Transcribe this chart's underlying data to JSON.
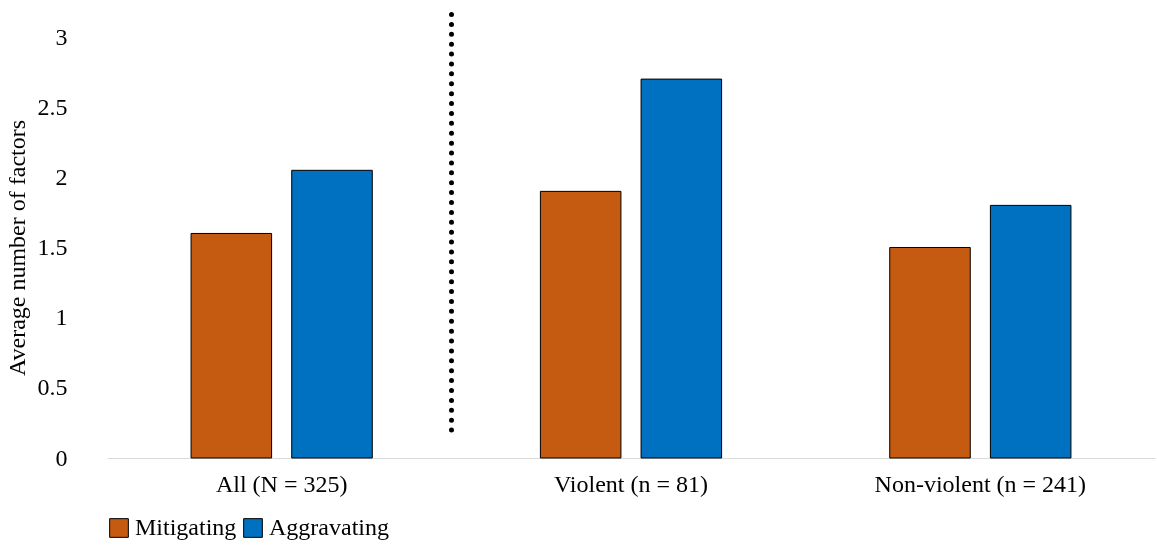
{
  "chart_data": {
    "type": "bar",
    "ylabel": "Average number of factors",
    "categories": [
      "All (N = 325)",
      "Violent (n = 81)",
      "Non-violent (n = 241)"
    ],
    "series": [
      {
        "name": "Mitigating",
        "color": "#c55a11",
        "values": [
          1.6,
          1.9,
          1.5
        ]
      },
      {
        "name": "Aggravating",
        "color": "#0070c0",
        "values": [
          2.05,
          2.7,
          1.8
        ]
      }
    ],
    "ylim": [
      0,
      3
    ],
    "yticks": [
      0,
      0.5,
      1,
      1.5,
      2,
      2.5,
      3
    ],
    "grid": false,
    "legend": "bottom"
  }
}
